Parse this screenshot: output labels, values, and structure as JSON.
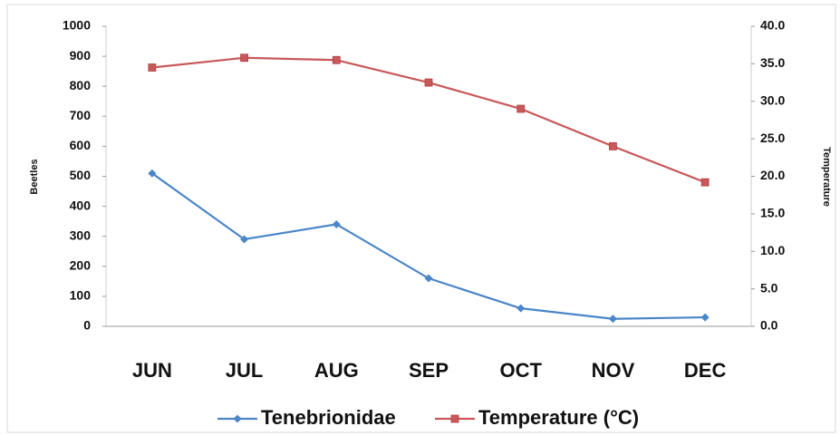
{
  "chart_data": {
    "type": "line",
    "categories": [
      "JUN",
      "JUL",
      "AUG",
      "SEP",
      "OCT",
      "NOV",
      "DEC"
    ],
    "series": [
      {
        "name": "Tenebrionidae",
        "color": "#4a86c8",
        "values": [
          510,
          290,
          340,
          160,
          60,
          25,
          30
        ]
      },
      {
        "name": "Temperature (°C)",
        "color": "#c8585a",
        "axis": "y2",
        "values": [
          34.5,
          35.8,
          35.5,
          32.5,
          29.0,
          24.0,
          19.2
        ]
      }
    ],
    "ylabel": "Beetles",
    "y2label": "Temperature",
    "ylim": [
      0,
      1000
    ],
    "yticks": [
      0,
      100,
      200,
      300,
      400,
      500,
      600,
      700,
      800,
      900,
      1000
    ],
    "y2lim": [
      0,
      40
    ],
    "y2ticks": [
      {
        "value": 0,
        "label": "0.0"
      },
      {
        "value": 5,
        "label": "5.0"
      },
      {
        "value": 10,
        "label": "10.0"
      },
      {
        "value": 15,
        "label": "15.0"
      },
      {
        "value": 20,
        "label": "20.0"
      },
      {
        "value": 25,
        "label": "25.0"
      },
      {
        "value": 30,
        "label": "30.0"
      },
      {
        "value": 35,
        "label": "35.0"
      },
      {
        "value": 40,
        "label": "40.0"
      }
    ],
    "grid": false,
    "legend": "bottom"
  }
}
